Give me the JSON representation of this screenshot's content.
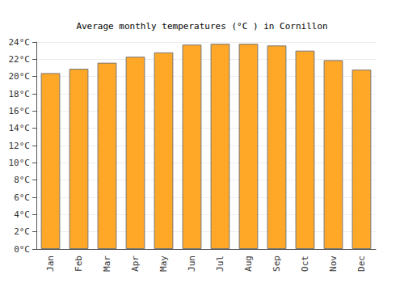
{
  "chart_data": {
    "type": "bar",
    "title": "Average monthly temperatures (°C ) in Cornillon",
    "categories": [
      "Jan",
      "Feb",
      "Mar",
      "Apr",
      "May",
      "Jun",
      "Jul",
      "Aug",
      "Sep",
      "Oct",
      "Nov",
      "Dec"
    ],
    "values": [
      20.4,
      20.9,
      21.6,
      22.3,
      22.8,
      23.7,
      23.8,
      23.8,
      23.6,
      23.0,
      21.9,
      20.8
    ],
    "color": "#ffa726",
    "ylim": [
      0,
      24
    ],
    "yticks": [
      {
        "value": 0,
        "label": "0°C"
      },
      {
        "value": 2,
        "label": "2°C"
      },
      {
        "value": 4,
        "label": "4°C"
      },
      {
        "value": 6,
        "label": "6°C"
      },
      {
        "value": 8,
        "label": "8°C"
      },
      {
        "value": 10,
        "label": "10°C"
      },
      {
        "value": 12,
        "label": "12°C"
      },
      {
        "value": 14,
        "label": "14°C"
      },
      {
        "value": 16,
        "label": "16°C"
      },
      {
        "value": 18,
        "label": "18°C"
      },
      {
        "value": 20,
        "label": "20°C"
      },
      {
        "value": 22,
        "label": "22°C"
      },
      {
        "value": 24,
        "label": "24°C"
      }
    ],
    "grid": true
  }
}
